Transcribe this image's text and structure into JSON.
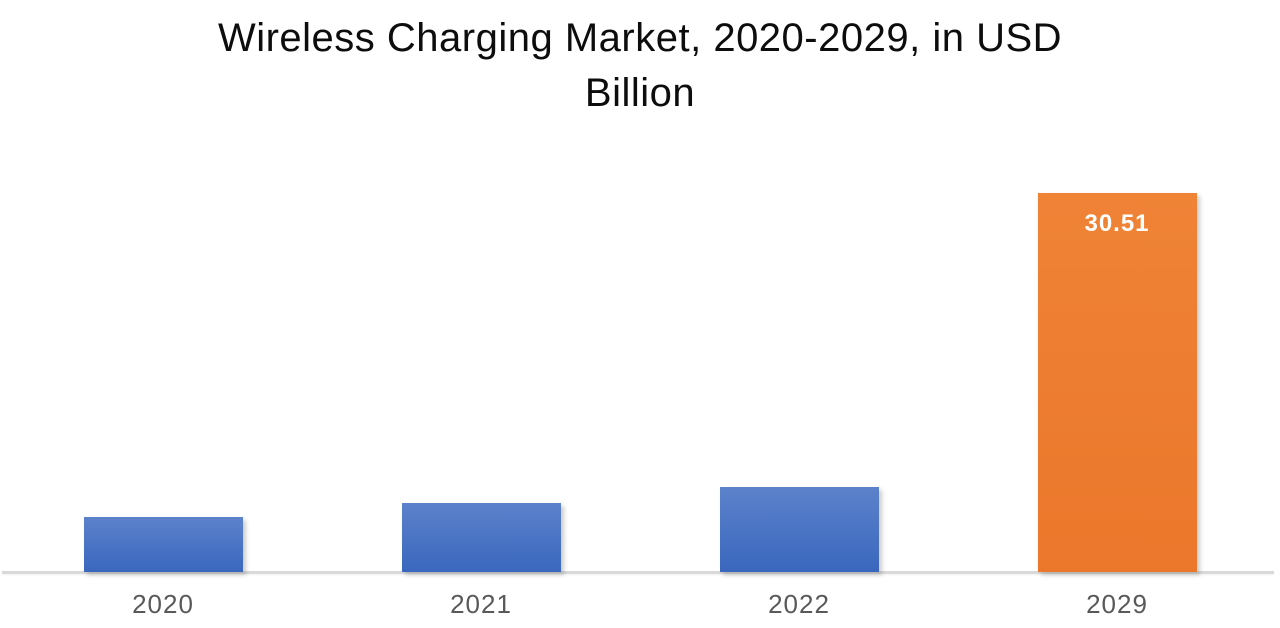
{
  "title": {
    "full": "Wireless Charging Market, 2020-2029, in USD Billion",
    "line1": "Wireless Charging Market, 2020-2029, in USD",
    "line2": "Billion"
  },
  "chart_data": {
    "type": "bar",
    "title": "Wireless Charging Market, 2020-2029, in USD Billion",
    "unit": "USD Billion",
    "categories": [
      "2020",
      "2021",
      "2022",
      "2029"
    ],
    "values": [
      4.43,
      5.55,
      6.84,
      30.51
    ],
    "value_labels": [
      "",
      "",
      "",
      "30.51"
    ],
    "xlabel": "",
    "ylabel": "",
    "ylim": [
      0,
      30.51
    ],
    "grid": false,
    "legend": false,
    "colors": {
      "blue_bar": "#4472C4",
      "blue_bar_gradient_top": "#5C82CB",
      "blue_bar_gradient_bottom": "#3A67BE",
      "orange_bar": "#ED7D31",
      "orange_bar_gradient_top": "#EF8336",
      "orange_bar_gradient_bottom": "#EB772B",
      "axis_line": "#D9D9D9",
      "tick_label": "#595959",
      "data_label": "#FFFFFF",
      "title_text": "#0D0D0D",
      "background": "#FFFFFF"
    },
    "bar_fills": [
      {
        "top": "#5C82CB",
        "bottom": "#3A67BE"
      },
      {
        "top": "#5C82CB",
        "bottom": "#3A67BE"
      },
      {
        "top": "#5C82CB",
        "bottom": "#3A67BE"
      },
      {
        "top": "#EF8336",
        "bottom": "#EB772B"
      }
    ]
  }
}
